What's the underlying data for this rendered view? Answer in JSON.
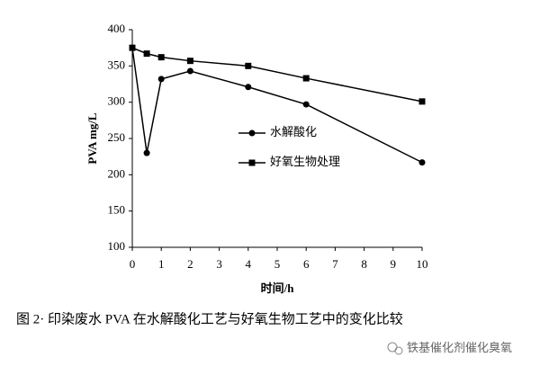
{
  "chart_data": {
    "type": "line",
    "y_label": "PVA mg/L",
    "x_label": "时间/h",
    "caption": "图 2· 印染废水 PVA 在水解酸化工艺与好氧生物工艺中的变化比较",
    "watermark": "铁基催化剂催化臭氧",
    "x": [
      0,
      0.5,
      1,
      2,
      4,
      6,
      10
    ],
    "series": [
      {
        "name": "水解酸化",
        "color": "#000000",
        "marker": "circle",
        "values": [
          375,
          230,
          332,
          343,
          321,
          297,
          217
        ]
      },
      {
        "name": "好氧生物处理",
        "color": "#000000",
        "marker": "square",
        "values": [
          375,
          367,
          362,
          357,
          350,
          333,
          301
        ]
      }
    ],
    "xlim": [
      0,
      10
    ],
    "xticks": [
      0,
      1,
      2,
      3,
      4,
      5,
      6,
      7,
      8,
      9,
      10
    ],
    "ylim": [
      100,
      400
    ],
    "yticks": [
      100,
      150,
      200,
      250,
      300,
      350,
      400
    ],
    "grid": false
  }
}
